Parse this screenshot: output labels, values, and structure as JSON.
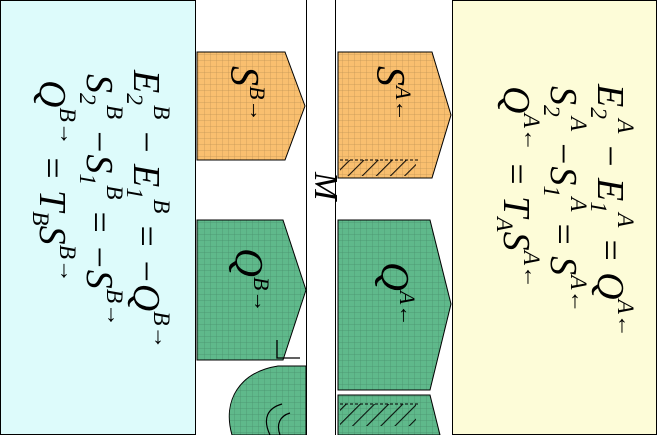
{
  "membrane": {
    "label": "M"
  },
  "reservoir_b": {
    "color": "#ddfbfb",
    "equations": [
      {
        "lhs": "E",
        "a_sub": "2",
        "a_sup": "B",
        "op": " − ",
        "b_sub": "1",
        "b_sup": "B",
        "rhs": " = −Q",
        "rhs_sup": "B→"
      },
      {
        "lhs": "S",
        "a_sub": "2",
        "a_sup": "B",
        "op": " −S",
        "b_sub": "1",
        "b_sup": "B",
        "rhs": " = −S",
        "rhs_sup": "B→"
      },
      {
        "lhs": "Q",
        "a_sup": "B→",
        "rhs": " = T",
        "rhs_sub": "B",
        "rhs2": "S",
        "rhs2_sup": "B→"
      }
    ]
  },
  "reservoir_a": {
    "color": "#fdfcd8",
    "equations": [
      {
        "lhs": "E",
        "a_sub": "2",
        "a_sup": "A",
        "op": " − ",
        "b_sub": "1",
        "b_sup": "A",
        "rhs": " = Q",
        "rhs_sup": "A←"
      },
      {
        "lhs": "S",
        "a_sub": "2",
        "a_sup": "A",
        "op": " −S",
        "b_sub": "1",
        "b_sup": "A",
        "rhs": " = S",
        "rhs_sup": "A←"
      },
      {
        "lhs": "Q",
        "a_sup": "A←",
        "rhs": " = T",
        "rhs_sub": "A",
        "rhs2": "S",
        "rhs2_sup": "A←"
      }
    ]
  },
  "arrows": {
    "entropy_b": {
      "symbol": "S",
      "sup": "B→",
      "color": "#f9bf6f"
    },
    "entropy_a": {
      "symbol": "S",
      "sup": "A←",
      "color": "#f9bf6f"
    },
    "heat_b": {
      "symbol": "Q",
      "sup": "B→",
      "color": "#5fb98b"
    },
    "heat_a": {
      "symbol": "Q",
      "sup": "A←",
      "color": "#5fb98b"
    }
  }
}
